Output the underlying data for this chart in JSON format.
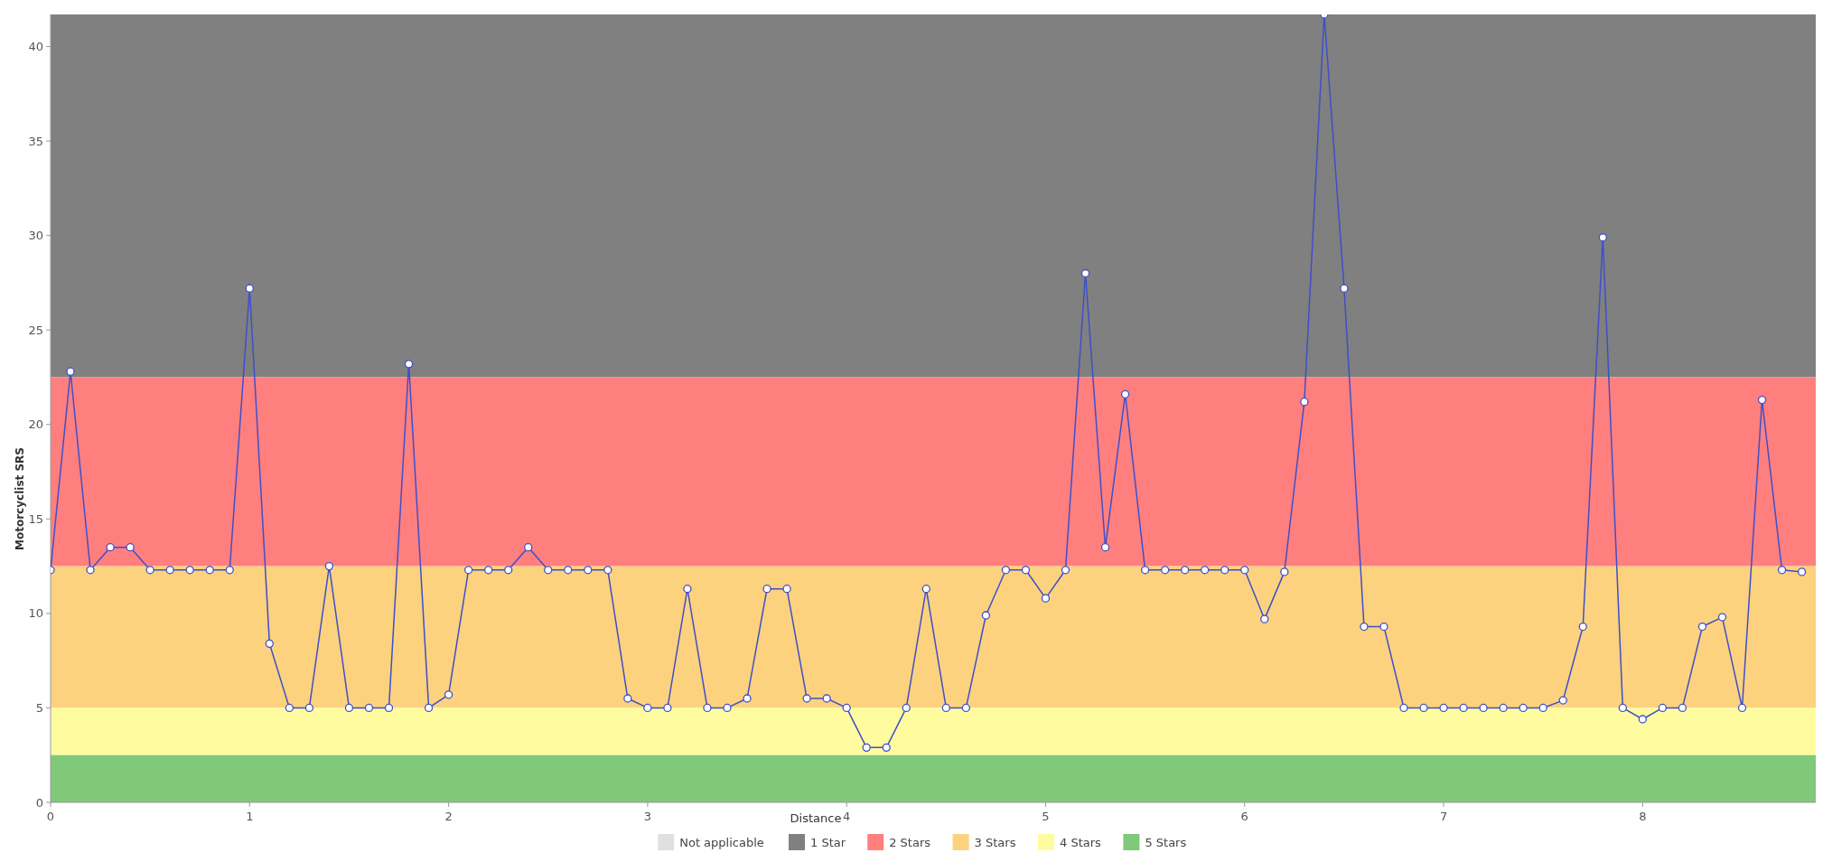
{
  "chart_data": {
    "type": "line",
    "xlabel": "Distance",
    "ylabel": "Motorcyclist SRS",
    "x": [
      0,
      0.1,
      0.2,
      0.3,
      0.4,
      0.5,
      0.6,
      0.7,
      0.8,
      0.9,
      1,
      1.1,
      1.2,
      1.3,
      1.4,
      1.5,
      1.6,
      1.7,
      1.8,
      1.9,
      2,
      2.1,
      2.2,
      2.3,
      2.4,
      2.5,
      2.6,
      2.7,
      2.8,
      2.9,
      3,
      3.1,
      3.2,
      3.3,
      3.4,
      3.5,
      3.6,
      3.7,
      3.8,
      3.9,
      4,
      4.1,
      4.2,
      4.3,
      4.4,
      4.5,
      4.6,
      4.7,
      4.8,
      4.9,
      5,
      5.1,
      5.2,
      5.3,
      5.4,
      5.5,
      5.6,
      5.7,
      5.8,
      5.9,
      6,
      6.1,
      6.2,
      6.3,
      6.4,
      6.5,
      6.6,
      6.7,
      6.8,
      6.9,
      7,
      7.1,
      7.2,
      7.3,
      7.4,
      7.5,
      7.6,
      7.7,
      7.8,
      7.9,
      8,
      8.1,
      8.2,
      8.3,
      8.4,
      8.5,
      8.6,
      8.7,
      8.8
    ],
    "series": [
      {
        "color": "#3f4fc8",
        "values": [
          12.3,
          22.8,
          12.3,
          13.5,
          13.5,
          12.3,
          12.3,
          12.3,
          12.3,
          12.3,
          27.2,
          8.4,
          5,
          5,
          12.5,
          5,
          5,
          5,
          23.2,
          5,
          5.7,
          12.3,
          12.3,
          12.3,
          13.5,
          12.3,
          12.3,
          12.3,
          12.3,
          5.5,
          5,
          5,
          11.3,
          5,
          5,
          5.5,
          11.3,
          11.3,
          5.5,
          5.5,
          5,
          2.9,
          2.9,
          5,
          11.3,
          5,
          5,
          9.9,
          12.3,
          12.3,
          10.8,
          12.3,
          28,
          13.5,
          21.6,
          12.3,
          12.3,
          12.3,
          12.3,
          12.3,
          12.3,
          9.7,
          12.2,
          21.2,
          41.7,
          27.2,
          9.3,
          9.3,
          5,
          5,
          5,
          5,
          5,
          5,
          5,
          5,
          5.4,
          9.3,
          29.9,
          5,
          4.4,
          5,
          5,
          9.3,
          9.8,
          5,
          21.3,
          12.3,
          12.2
        ]
      }
    ],
    "xlim": [
      0,
      8.87
    ],
    "ylim": [
      0,
      41.7
    ],
    "xticks": [
      0,
      1,
      2,
      3,
      4,
      5,
      6,
      7,
      8
    ],
    "yticks": [
      0,
      5,
      10,
      15,
      20,
      25,
      30,
      35,
      40
    ],
    "bands": [
      {
        "axis": "y",
        "from": 22.5,
        "to": 41.7,
        "label": "1 Star",
        "color": "#808080"
      },
      {
        "axis": "y",
        "from": 12.5,
        "to": 22.5,
        "label": "2 Stars",
        "color": "#ff7f7f"
      },
      {
        "axis": "y",
        "from": 5,
        "to": 12.5,
        "label": "3 Stars",
        "color": "#fcd27f"
      },
      {
        "axis": "y",
        "from": 2.5,
        "to": 5,
        "label": "4 Stars",
        "color": "#fefc9e"
      },
      {
        "axis": "y",
        "from": 0,
        "to": 2.5,
        "label": "5 Stars",
        "color": "#80c97a"
      }
    ],
    "annotations": [
      "Not applicable"
    ],
    "grid": false,
    "legend": "bottom",
    "marker": "circle",
    "line_style": "solid"
  }
}
